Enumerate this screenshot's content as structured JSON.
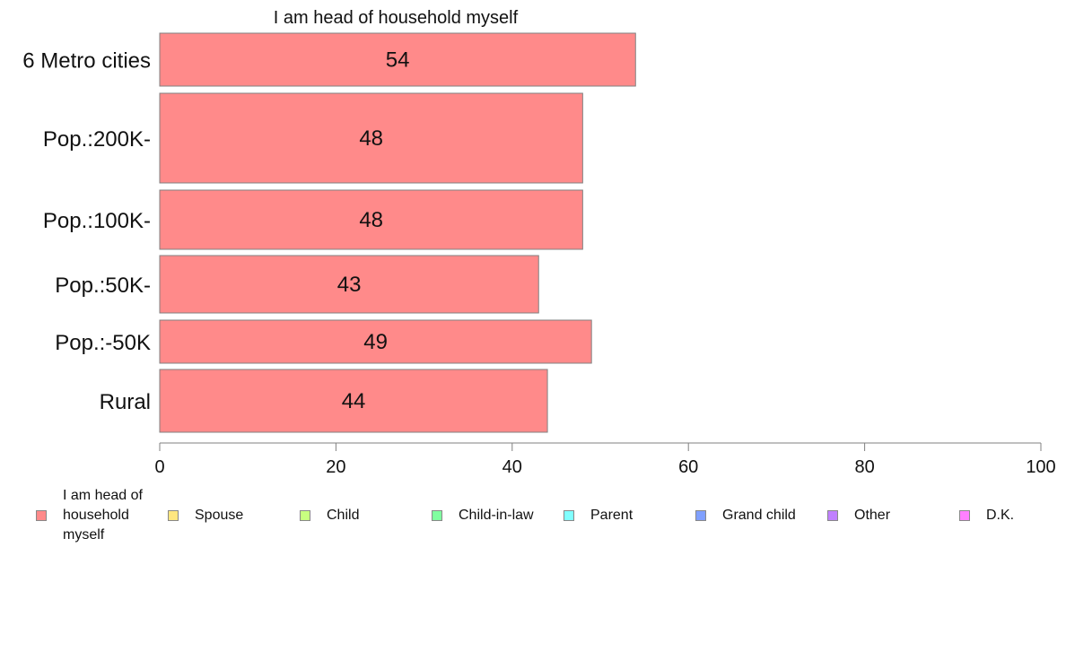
{
  "chart_data": {
    "type": "bar",
    "orientation": "horizontal",
    "title": "I am head of household myself",
    "categories": [
      "6 Metro cities",
      "Pop.:200K-",
      "Pop.:100K-",
      "Pop.:50K-",
      "Pop.:-50K",
      "Rural"
    ],
    "series": [
      {
        "name": "I am head of household myself",
        "color": "#ff8a8a",
        "values": [
          54,
          48,
          48,
          43,
          49,
          44
        ],
        "labels": [
          "54",
          "48",
          "48",
          "43",
          "49",
          "44"
        ]
      }
    ],
    "xlim": [
      0,
      100
    ],
    "xticks": [
      "0",
      "20",
      "40",
      "60",
      "80",
      "100"
    ],
    "grid": false,
    "legend_position": "bottom",
    "legend": [
      {
        "label": "I am head of household myself",
        "color": "#ff8a8a"
      },
      {
        "label": "Spouse",
        "color": "#ffe680"
      },
      {
        "label": "Child",
        "color": "#c8ff80"
      },
      {
        "label": "Child-in-law",
        "color": "#80ffa0"
      },
      {
        "label": "Parent",
        "color": "#80ffff"
      },
      {
        "label": "Grand child",
        "color": "#80a0ff"
      },
      {
        "label": "Other",
        "color": "#c080ff"
      },
      {
        "label": "D.K.",
        "color": "#ff80ff"
      }
    ]
  }
}
